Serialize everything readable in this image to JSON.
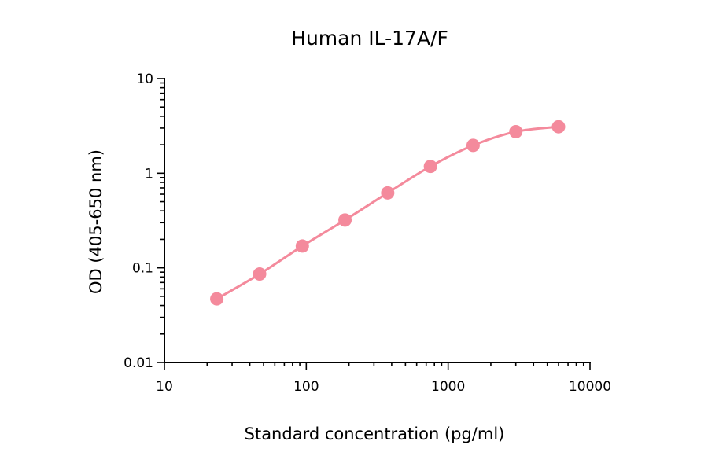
{
  "chart_data": {
    "type": "scatter",
    "title": "Human IL-17A/F",
    "xlabel": "Standard concentration (pg/ml)",
    "ylabel": "OD (405-650 nm)",
    "xscale": "log",
    "yscale": "log",
    "xlim": [
      10,
      10000
    ],
    "ylim": [
      0.01,
      10
    ],
    "x_ticks": [
      10,
      100,
      1000,
      10000
    ],
    "x_tick_labels": [
      "10",
      "100",
      "1000",
      "10000"
    ],
    "y_ticks": [
      0.01,
      0.1,
      1,
      10
    ],
    "y_tick_labels": [
      "0.01",
      "0.1",
      "1",
      "10"
    ],
    "grid": false,
    "legend": "none",
    "connected": true,
    "color": "#f48a9c",
    "series": [
      {
        "x": [
          23.4,
          46.9,
          93.8,
          187.5,
          375,
          750,
          1500,
          3000,
          6000
        ],
        "y": [
          0.047,
          0.086,
          0.17,
          0.32,
          0.62,
          1.18,
          1.97,
          2.75,
          3.1
        ]
      }
    ]
  }
}
